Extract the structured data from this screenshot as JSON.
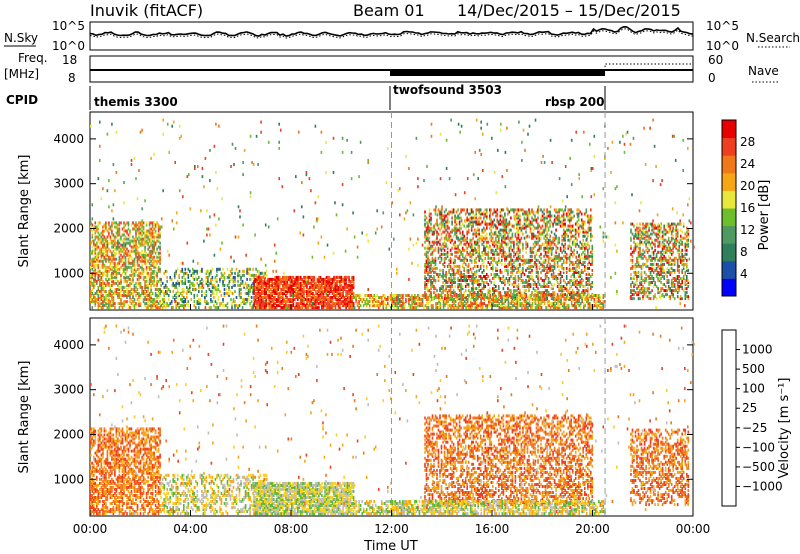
{
  "header": {
    "station": "Inuvik (fitACF)",
    "beam": "Beam 01",
    "date_range": "14/Dec/2015 – 15/Dec/2015"
  },
  "strip_labels": {
    "nsky": "N.Sky",
    "nsearch": "N.Search",
    "freq_line1": "Freq.",
    "freq_line2": "[MHz]",
    "nave": "Nave",
    "cpid": "CPID"
  },
  "colors": {
    "power_scale": [
      "#0000ff",
      "#1c4fa8",
      "#2f7f5c",
      "#4f9a60",
      "#6cbf2a",
      "#e8e83a",
      "#f6a614",
      "#f07818",
      "#ee4020",
      "#e80000"
    ],
    "velocity_scale": [
      "#1a3fbf",
      "#2860a8",
      "#2f7f5c",
      "#5ab840",
      "#bdbdbd",
      "#f8d020",
      "#f6a614",
      "#f07818",
      "#ee4020",
      "#e80000"
    ]
  },
  "chart_data": [
    {
      "type": "line",
      "panel": "noise",
      "title": "",
      "left_axis_ticks": [
        "10^5",
        "10^0"
      ],
      "right_axis_ticks": [
        "10^5",
        "10^0"
      ],
      "series": [
        {
          "name": "N.Sky",
          "style": "solid"
        },
        {
          "name": "N.Search",
          "style": "dotted"
        }
      ]
    },
    {
      "type": "line",
      "panel": "frequency",
      "left_axis_ticks": [
        18,
        8
      ],
      "right_axis_ticks": [
        60,
        0
      ],
      "series": [
        {
          "name": "Freq.",
          "style": "solid",
          "values_mhz": [
            11,
            11
          ]
        },
        {
          "name": "Nave",
          "style": "dotted"
        }
      ]
    },
    {
      "type": "table",
      "panel": "cpid",
      "segments": [
        {
          "label": "themis 3300",
          "start_h": 0,
          "end_h": 12
        },
        {
          "label": "twofsound 3503",
          "start_h": 12,
          "end_h": 20.5
        },
        {
          "label": "rbsp 200",
          "start_h": 20.5,
          "end_h": 24
        }
      ]
    },
    {
      "type": "heatmap",
      "panel": "power",
      "ylabel": "Slant Range [km]",
      "yticks": [
        1000,
        2000,
        3000,
        4000
      ],
      "ylim": [
        180,
        4600
      ],
      "xlim": [
        0,
        24
      ],
      "colorbar_label": "Power [dB]",
      "colorbar_ticks": [
        "4",
        "8",
        "12",
        "16",
        "20",
        "24",
        "28"
      ]
    },
    {
      "type": "heatmap",
      "panel": "velocity",
      "ylabel": "Slant Range [km]",
      "yticks": [
        1000,
        2000,
        3000,
        4000
      ],
      "ylim": [
        180,
        4600
      ],
      "xlim": [
        0,
        24
      ],
      "xlabel": "Time UT",
      "xticks": [
        "00:00",
        "04:00",
        "08:00",
        "12:00",
        "16:00",
        "20:00",
        "00:00"
      ],
      "colorbar_label": "Velocity [m s⁻¹]",
      "colorbar_ticks": [
        "1000",
        "500",
        "100",
        "25",
        "−25",
        "−100",
        "−500",
        "−1000"
      ]
    }
  ]
}
